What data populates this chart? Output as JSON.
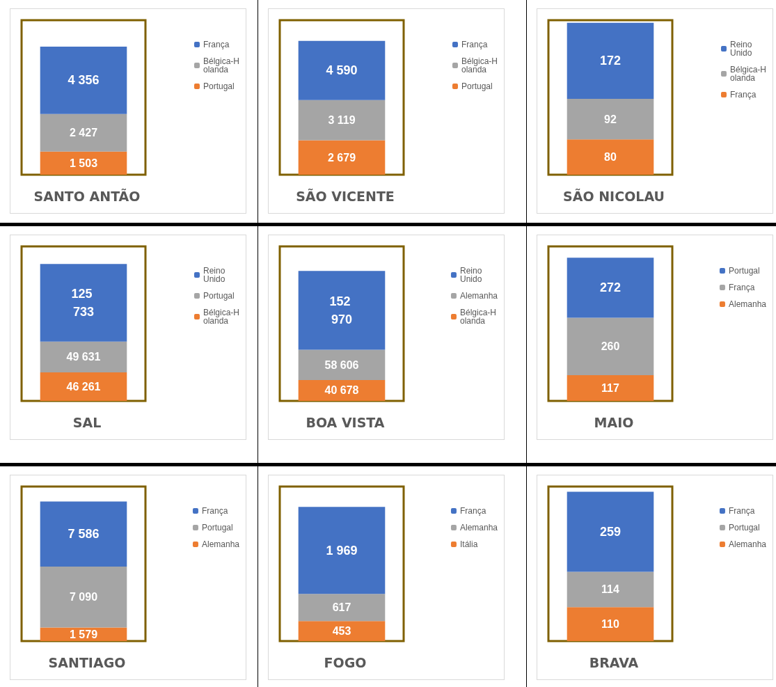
{
  "chart_data": [
    {
      "type": "bar",
      "title": "SANTO ANTÃO",
      "categories": [
        null
      ],
      "stacked": true,
      "legend": "right",
      "tick_labels": false,
      "series": [
        {
          "name": "Portugal",
          "color": "#ed7d31",
          "values": [
            1503
          ],
          "value_labels": [
            "1 503"
          ]
        },
        {
          "name": "Bélgica-Holanda",
          "color": "#a5a5a5",
          "values": [
            2427
          ],
          "value_labels": [
            "2 427"
          ]
        },
        {
          "name": "França",
          "color": "#4472c4",
          "values": [
            4356
          ],
          "value_labels": [
            "4 356"
          ]
        }
      ]
    },
    {
      "type": "bar",
      "title": "SÃO VICENTE",
      "categories": [
        null
      ],
      "stacked": true,
      "legend": "right",
      "tick_labels": false,
      "series": [
        {
          "name": "Portugal",
          "color": "#ed7d31",
          "values": [
            2679
          ],
          "value_labels": [
            "2 679"
          ]
        },
        {
          "name": "Bélgica-Holanda",
          "color": "#a5a5a5",
          "values": [
            3119
          ],
          "value_labels": [
            "3 119"
          ]
        },
        {
          "name": "França",
          "color": "#4472c4",
          "values": [
            4590
          ],
          "value_labels": [
            "4 590"
          ]
        }
      ]
    },
    {
      "type": "bar",
      "title": "SÃO NICOLAU",
      "categories": [
        null
      ],
      "stacked": true,
      "legend": "right",
      "tick_labels": false,
      "series": [
        {
          "name": "França",
          "color": "#ed7d31",
          "values": [
            80
          ],
          "value_labels": [
            "80"
          ]
        },
        {
          "name": "Bélgica-Holanda",
          "color": "#a5a5a5",
          "values": [
            92
          ],
          "value_labels": [
            "92"
          ]
        },
        {
          "name": "Reino Unido",
          "color": "#4472c4",
          "values": [
            172
          ],
          "value_labels": [
            "172"
          ]
        }
      ]
    },
    {
      "type": "bar",
      "title": "SAL",
      "categories": [
        null
      ],
      "stacked": true,
      "legend": "right",
      "tick_labels": false,
      "series": [
        {
          "name": "Bélgica-Holanda",
          "color": "#ed7d31",
          "values": [
            46261
          ],
          "value_labels": [
            "46 261"
          ]
        },
        {
          "name": "Portugal",
          "color": "#a5a5a5",
          "values": [
            49631
          ],
          "value_labels": [
            "49 631"
          ]
        },
        {
          "name": "Reino Unido",
          "color": "#4472c4",
          "values": [
            125733
          ],
          "value_labels": [
            "125 733"
          ]
        }
      ]
    },
    {
      "type": "bar",
      "title": "BOA VISTA",
      "categories": [
        null
      ],
      "stacked": true,
      "legend": "right",
      "tick_labels": false,
      "series": [
        {
          "name": "Bélgica-Holanda",
          "color": "#ed7d31",
          "values": [
            40678
          ],
          "value_labels": [
            "40 678"
          ]
        },
        {
          "name": "Alemanha",
          "color": "#a5a5a5",
          "values": [
            58606
          ],
          "value_labels": [
            "58 606"
          ]
        },
        {
          "name": "Reino Unido",
          "color": "#4472c4",
          "values": [
            152970
          ],
          "value_labels": [
            "152 970"
          ]
        }
      ]
    },
    {
      "type": "bar",
      "title": "MAIO",
      "categories": [
        null
      ],
      "stacked": true,
      "legend": "right",
      "tick_labels": false,
      "series": [
        {
          "name": "Alemanha",
          "color": "#ed7d31",
          "values": [
            117
          ],
          "value_labels": [
            "117"
          ]
        },
        {
          "name": "França",
          "color": "#a5a5a5",
          "values": [
            260
          ],
          "value_labels": [
            "260"
          ]
        },
        {
          "name": "Portugal",
          "color": "#4472c4",
          "values": [
            272
          ],
          "value_labels": [
            "272"
          ]
        }
      ]
    },
    {
      "type": "bar",
      "title": "SANTIAGO",
      "categories": [
        null
      ],
      "stacked": true,
      "legend": "right",
      "tick_labels": false,
      "series": [
        {
          "name": "Alemanha",
          "color": "#ed7d31",
          "values": [
            1579
          ],
          "value_labels": [
            "1 579"
          ]
        },
        {
          "name": "Portugal",
          "color": "#a5a5a5",
          "values": [
            7090
          ],
          "value_labels": [
            "7 090"
          ]
        },
        {
          "name": "França",
          "color": "#4472c4",
          "values": [
            7586
          ],
          "value_labels": [
            "7 586"
          ]
        }
      ]
    },
    {
      "type": "bar",
      "title": "FOGO",
      "categories": [
        null
      ],
      "stacked": true,
      "legend": "right",
      "tick_labels": false,
      "series": [
        {
          "name": "Itália",
          "color": "#ed7d31",
          "values": [
            453
          ],
          "value_labels": [
            "453"
          ]
        },
        {
          "name": "Alemanha",
          "color": "#a5a5a5",
          "values": [
            617
          ],
          "value_labels": [
            "617"
          ]
        },
        {
          "name": "França",
          "color": "#4472c4",
          "values": [
            1969
          ],
          "value_labels": [
            "1 969"
          ]
        }
      ]
    },
    {
      "type": "bar",
      "title": "BRAVA",
      "categories": [
        null
      ],
      "stacked": true,
      "legend": "right",
      "tick_labels": false,
      "series": [
        {
          "name": "Alemanha",
          "color": "#ed7d31",
          "values": [
            110
          ],
          "value_labels": [
            "110"
          ]
        },
        {
          "name": "Portugal",
          "color": "#a5a5a5",
          "values": [
            114
          ],
          "value_labels": [
            "114"
          ]
        },
        {
          "name": "França",
          "color": "#4472c4",
          "values": [
            259
          ],
          "value_labels": [
            "259"
          ]
        }
      ]
    }
  ]
}
